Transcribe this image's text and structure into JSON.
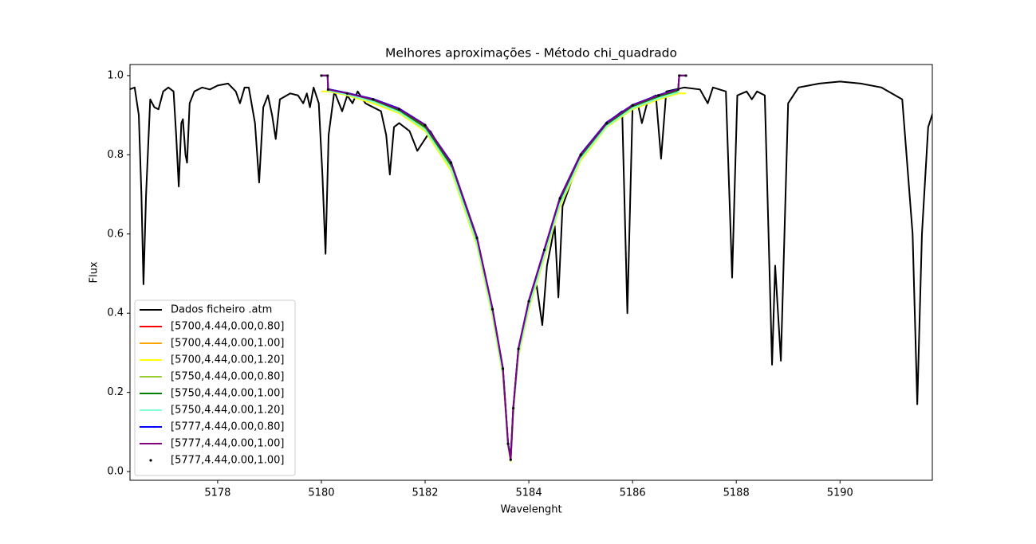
{
  "chart_data": {
    "type": "line",
    "title": "Melhores aproximações - Método chi_quadrado",
    "x_label": "Wavelenght",
    "y_label": "Flux",
    "xlim": [
      5176.31,
      5191.78
    ],
    "ylim": [
      -0.022,
      1.028
    ],
    "xticks": [
      5178,
      5180,
      5182,
      5184,
      5186,
      5188,
      5190
    ],
    "yticks": [
      {
        "value": 0,
        "label": "0.0"
      },
      0.2,
      0.4,
      0.6,
      0.8,
      {
        "value": 1,
        "label": "1.0"
      }
    ],
    "legend": "lower left",
    "series": [
      {
        "name": "Dados ficheiro .atm",
        "color": "#000000",
        "x": [
          5176.3,
          5176.4,
          5176.48,
          5176.53,
          5176.57,
          5176.62,
          5176.7,
          5176.78,
          5176.86,
          5176.95,
          5177.05,
          5177.15,
          5177.2,
          5177.25,
          5177.3,
          5177.33,
          5177.38,
          5177.41,
          5177.46,
          5177.55,
          5177.7,
          5177.85,
          5178.0,
          5178.2,
          5178.35,
          5178.43,
          5178.52,
          5178.6,
          5178.72,
          5178.8,
          5178.88,
          5178.97,
          5179.05,
          5179.12,
          5179.2,
          5179.4,
          5179.55,
          5179.65,
          5179.72,
          5179.78,
          5179.85,
          5179.95,
          5180.02,
          5180.08,
          5180.14,
          5180.25,
          5180.4,
          5180.5,
          5180.6,
          5180.7,
          5180.85,
          5181.0,
          5181.15,
          5181.25,
          5181.32,
          5181.4,
          5181.5,
          5181.7,
          5181.85,
          5181.95,
          5182.1,
          5182.5,
          5183.0,
          5183.3,
          5183.5,
          5183.6,
          5183.65,
          5183.7,
          5183.8,
          5184.0,
          5184.15,
          5184.26,
          5184.35,
          5184.5,
          5184.57,
          5184.65,
          5185.0,
          5185.5,
          5185.8,
          5185.9,
          5186.0,
          5186.1,
          5186.18,
          5186.3,
          5186.45,
          5186.55,
          5186.65,
          5187.0,
          5187.3,
          5187.45,
          5187.55,
          5187.8,
          5187.92,
          5188.02,
          5188.2,
          5188.3,
          5188.4,
          5188.55,
          5188.69,
          5188.75,
          5188.86,
          5189.0,
          5189.2,
          5189.6,
          5190.0,
          5190.4,
          5190.8,
          5191.2,
          5191.4,
          5191.49,
          5191.58,
          5191.7,
          5191.8
        ],
        "values": [
          0.965,
          0.97,
          0.9,
          0.7,
          0.473,
          0.7,
          0.94,
          0.92,
          0.915,
          0.96,
          0.97,
          0.96,
          0.85,
          0.72,
          0.88,
          0.89,
          0.8,
          0.78,
          0.93,
          0.96,
          0.97,
          0.965,
          0.975,
          0.98,
          0.96,
          0.93,
          0.97,
          0.97,
          0.88,
          0.73,
          0.92,
          0.95,
          0.9,
          0.84,
          0.94,
          0.955,
          0.95,
          0.93,
          0.955,
          0.92,
          0.97,
          0.93,
          0.75,
          0.55,
          0.85,
          0.96,
          0.91,
          0.95,
          0.93,
          0.96,
          0.93,
          0.92,
          0.91,
          0.85,
          0.75,
          0.87,
          0.88,
          0.86,
          0.81,
          0.83,
          0.86,
          0.77,
          0.58,
          0.4,
          0.26,
          0.07,
          0.04,
          0.16,
          0.31,
          0.43,
          0.47,
          0.37,
          0.52,
          0.62,
          0.44,
          0.67,
          0.8,
          0.88,
          0.91,
          0.4,
          0.92,
          0.93,
          0.88,
          0.94,
          0.95,
          0.79,
          0.96,
          0.97,
          0.965,
          0.93,
          0.97,
          0.96,
          0.49,
          0.95,
          0.96,
          0.94,
          0.96,
          0.95,
          0.27,
          0.52,
          0.28,
          0.93,
          0.97,
          0.98,
          0.985,
          0.98,
          0.97,
          0.94,
          0.6,
          0.17,
          0.6,
          0.87,
          0.91
        ]
      },
      {
        "name": "[5700,4.44,0.00,0.80]",
        "color": "#ff0000",
        "x": [
          5180.0,
          5180.12,
          5180.13,
          5180.5,
          5181,
          5181.5,
          5182,
          5182.5,
          5183,
          5183.3,
          5183.5,
          5183.6,
          5183.65,
          5183.7,
          5183.8,
          5184,
          5184.3,
          5184.6,
          5185,
          5185.5,
          5186,
          5186.5,
          5186.88,
          5186.9,
          5187.03
        ],
        "values": [
          1.0,
          1.0,
          0.965,
          0.955,
          0.94,
          0.915,
          0.873,
          0.778,
          0.588,
          0.408,
          0.258,
          0.068,
          0.03,
          0.158,
          0.308,
          0.428,
          0.558,
          0.688,
          0.798,
          0.878,
          0.923,
          0.948,
          0.963,
          1.0,
          1.0
        ]
      },
      {
        "name": "[5700,4.44,0.00,1.00]",
        "color": "#ffa500",
        "x": [
          5180.0,
          5180.12,
          5180.13,
          5180.5,
          5181,
          5181.5,
          5182,
          5182.5,
          5183,
          5183.3,
          5183.5,
          5183.6,
          5183.65,
          5183.7,
          5183.8,
          5184,
          5184.3,
          5184.6,
          5185,
          5185.5,
          5186,
          5186.5,
          5186.88,
          5186.9,
          5187.03
        ],
        "values": [
          1.0,
          1.0,
          0.963,
          0.953,
          0.937,
          0.91,
          0.867,
          0.77,
          0.58,
          0.4,
          0.25,
          0.065,
          0.028,
          0.15,
          0.3,
          0.42,
          0.55,
          0.68,
          0.792,
          0.874,
          0.92,
          0.945,
          0.96,
          1.0,
          1.0
        ]
      },
      {
        "name": "[5700,4.44,0.00,1.20]",
        "color": "#ffff00",
        "x": [
          5180.0,
          5180.12,
          5180.13,
          5180.5,
          5181,
          5181.5,
          5182,
          5182.5,
          5183,
          5183.3,
          5183.5,
          5183.6,
          5183.65,
          5183.7,
          5183.8,
          5184,
          5184.3,
          5184.6,
          5185,
          5185.5,
          5186,
          5186.5,
          5186.88,
          5186.9,
          5187.03
        ],
        "values": [
          0.96,
          0.96,
          0.96,
          0.95,
          0.93,
          0.905,
          0.86,
          0.76,
          0.57,
          0.39,
          0.24,
          0.06,
          0.025,
          0.14,
          0.29,
          0.41,
          0.54,
          0.67,
          0.785,
          0.87,
          0.915,
          0.94,
          0.955,
          0.955,
          0.955
        ]
      },
      {
        "name": "[5750,4.44,0.00,0.80]",
        "color": "#9acd32",
        "x": [
          5180.0,
          5180.12,
          5180.13,
          5180.5,
          5181,
          5181.5,
          5182,
          5182.5,
          5183,
          5183.3,
          5183.5,
          5183.6,
          5183.65,
          5183.7,
          5183.8,
          5184,
          5184.3,
          5184.6,
          5185,
          5185.5,
          5186,
          5186.5,
          5186.88,
          5186.9,
          5187.03
        ],
        "values": [
          1.0,
          1.0,
          0.965,
          0.955,
          0.94,
          0.916,
          0.875,
          0.78,
          0.59,
          0.41,
          0.26,
          0.07,
          0.03,
          0.16,
          0.31,
          0.43,
          0.56,
          0.69,
          0.8,
          0.88,
          0.925,
          0.95,
          0.965,
          1.0,
          1.0
        ]
      },
      {
        "name": "[5750,4.44,0.00,1.00]",
        "color": "#008000",
        "x": [
          5180.0,
          5180.12,
          5180.13,
          5180.5,
          5181,
          5181.5,
          5182,
          5182.5,
          5183,
          5183.3,
          5183.5,
          5183.6,
          5183.65,
          5183.7,
          5183.8,
          5184,
          5184.3,
          5184.6,
          5185,
          5185.5,
          5186,
          5186.5,
          5186.88,
          5186.9,
          5187.03
        ],
        "values": [
          1.0,
          1.0,
          0.964,
          0.954,
          0.938,
          0.912,
          0.87,
          0.774,
          0.584,
          0.404,
          0.254,
          0.066,
          0.029,
          0.154,
          0.304,
          0.424,
          0.554,
          0.684,
          0.795,
          0.876,
          0.922,
          0.947,
          0.962,
          1.0,
          1.0
        ]
      },
      {
        "name": "[5750,4.44,0.00,1.20]",
        "color": "#7fffd4",
        "x": [
          5180.0,
          5180.12,
          5180.13,
          5180.5,
          5181,
          5181.5,
          5182,
          5182.5,
          5183,
          5183.3,
          5183.5,
          5183.6,
          5183.65,
          5183.7,
          5183.8,
          5184,
          5184.3,
          5184.6,
          5185,
          5185.5,
          5186,
          5186.5,
          5186.88,
          5186.9,
          5187.03
        ],
        "values": [
          1.0,
          1.0,
          0.962,
          0.952,
          0.934,
          0.908,
          0.864,
          0.766,
          0.576,
          0.396,
          0.246,
          0.063,
          0.027,
          0.146,
          0.296,
          0.416,
          0.546,
          0.676,
          0.79,
          0.872,
          0.918,
          0.943,
          0.958,
          1.0,
          1.0
        ]
      },
      {
        "name": "[5777,4.44,0.00,0.80]",
        "color": "#0000ff",
        "x": [
          5180.0,
          5180.12,
          5180.13,
          5180.5,
          5181,
          5181.5,
          5182,
          5182.5,
          5183,
          5183.3,
          5183.5,
          5183.6,
          5183.65,
          5183.7,
          5183.8,
          5184,
          5184.3,
          5184.6,
          5185,
          5185.5,
          5186,
          5186.5,
          5186.88,
          5186.9,
          5187.03
        ],
        "values": [
          1.0,
          1.0,
          0.966,
          0.956,
          0.941,
          0.917,
          0.876,
          0.782,
          0.592,
          0.412,
          0.262,
          0.071,
          0.031,
          0.162,
          0.312,
          0.432,
          0.562,
          0.692,
          0.802,
          0.882,
          0.926,
          0.951,
          0.966,
          1.0,
          1.0
        ]
      },
      {
        "name": "[5777,4.44,0.00,1.00]",
        "color": "#800080",
        "x": [
          5180.0,
          5180.12,
          5180.13,
          5180.5,
          5181,
          5181.5,
          5182,
          5182.5,
          5183,
          5183.3,
          5183.5,
          5183.6,
          5183.65,
          5183.7,
          5183.8,
          5184,
          5184.3,
          5184.6,
          5185,
          5185.5,
          5186,
          5186.5,
          5186.88,
          5186.9,
          5187.03
        ],
        "values": [
          1.0,
          1.0,
          0.965,
          0.955,
          0.94,
          0.915,
          0.875,
          0.78,
          0.59,
          0.41,
          0.26,
          0.07,
          0.03,
          0.16,
          0.31,
          0.43,
          0.56,
          0.69,
          0.8,
          0.88,
          0.925,
          0.95,
          0.965,
          1.0,
          1.0
        ]
      },
      {
        "name": "[5777,4.44,0.00,1.00]",
        "color": "#000000",
        "marker": ".",
        "x": [
          5180.0,
          5180.12,
          5180.13,
          5180.5,
          5181,
          5181.5,
          5182,
          5182.5,
          5183,
          5183.3,
          5183.5,
          5183.6,
          5183.65,
          5183.7,
          5183.8,
          5184,
          5184.3,
          5184.6,
          5185,
          5185.5,
          5186,
          5186.5,
          5186.88,
          5186.9,
          5187.03
        ],
        "values": [
          1.0,
          1.0,
          0.965,
          0.955,
          0.94,
          0.915,
          0.875,
          0.78,
          0.59,
          0.41,
          0.26,
          0.07,
          0.03,
          0.16,
          0.31,
          0.43,
          0.56,
          0.69,
          0.8,
          0.88,
          0.925,
          0.95,
          0.965,
          1.0,
          1.0
        ]
      }
    ]
  }
}
